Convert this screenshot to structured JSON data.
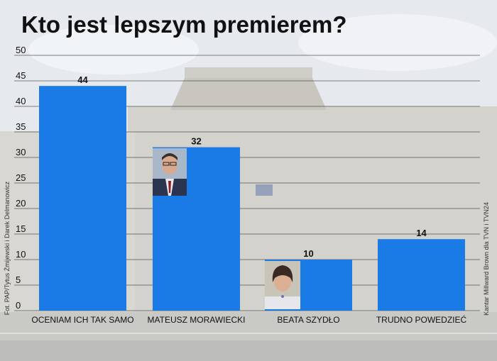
{
  "title": "Kto jest lepszym premierem?",
  "credit_photo": "Fot. PAP/Tytus Żmijewski i Darek Delmanowicz",
  "credit_source": "Kantar Millward Brown dla TVN i TVN24",
  "colors": {
    "bar": "#1a7be6",
    "grid": "#555555",
    "text": "#111111"
  },
  "icons": {
    "portrait_morawiecki": "man-portrait-icon",
    "portrait_szydlo": "woman-portrait-icon"
  },
  "chart_data": {
    "type": "bar",
    "categories": [
      "OCENIAM ICH TAK SAMO",
      "MATEUSZ MORAWIECKI",
      "BEATA SZYDŁO",
      "TRUDNO POWEDZIEĆ"
    ],
    "values": [
      44,
      32,
      10,
      14
    ],
    "data_labels": [
      "44",
      "32",
      "10",
      "14"
    ],
    "yticks": [
      "0",
      "5",
      "10",
      "15",
      "20",
      "25",
      "30",
      "35",
      "40",
      "45",
      "50"
    ],
    "ylim": [
      0,
      50
    ],
    "grid": true,
    "title": "Kto jest lepszym premierem?"
  }
}
